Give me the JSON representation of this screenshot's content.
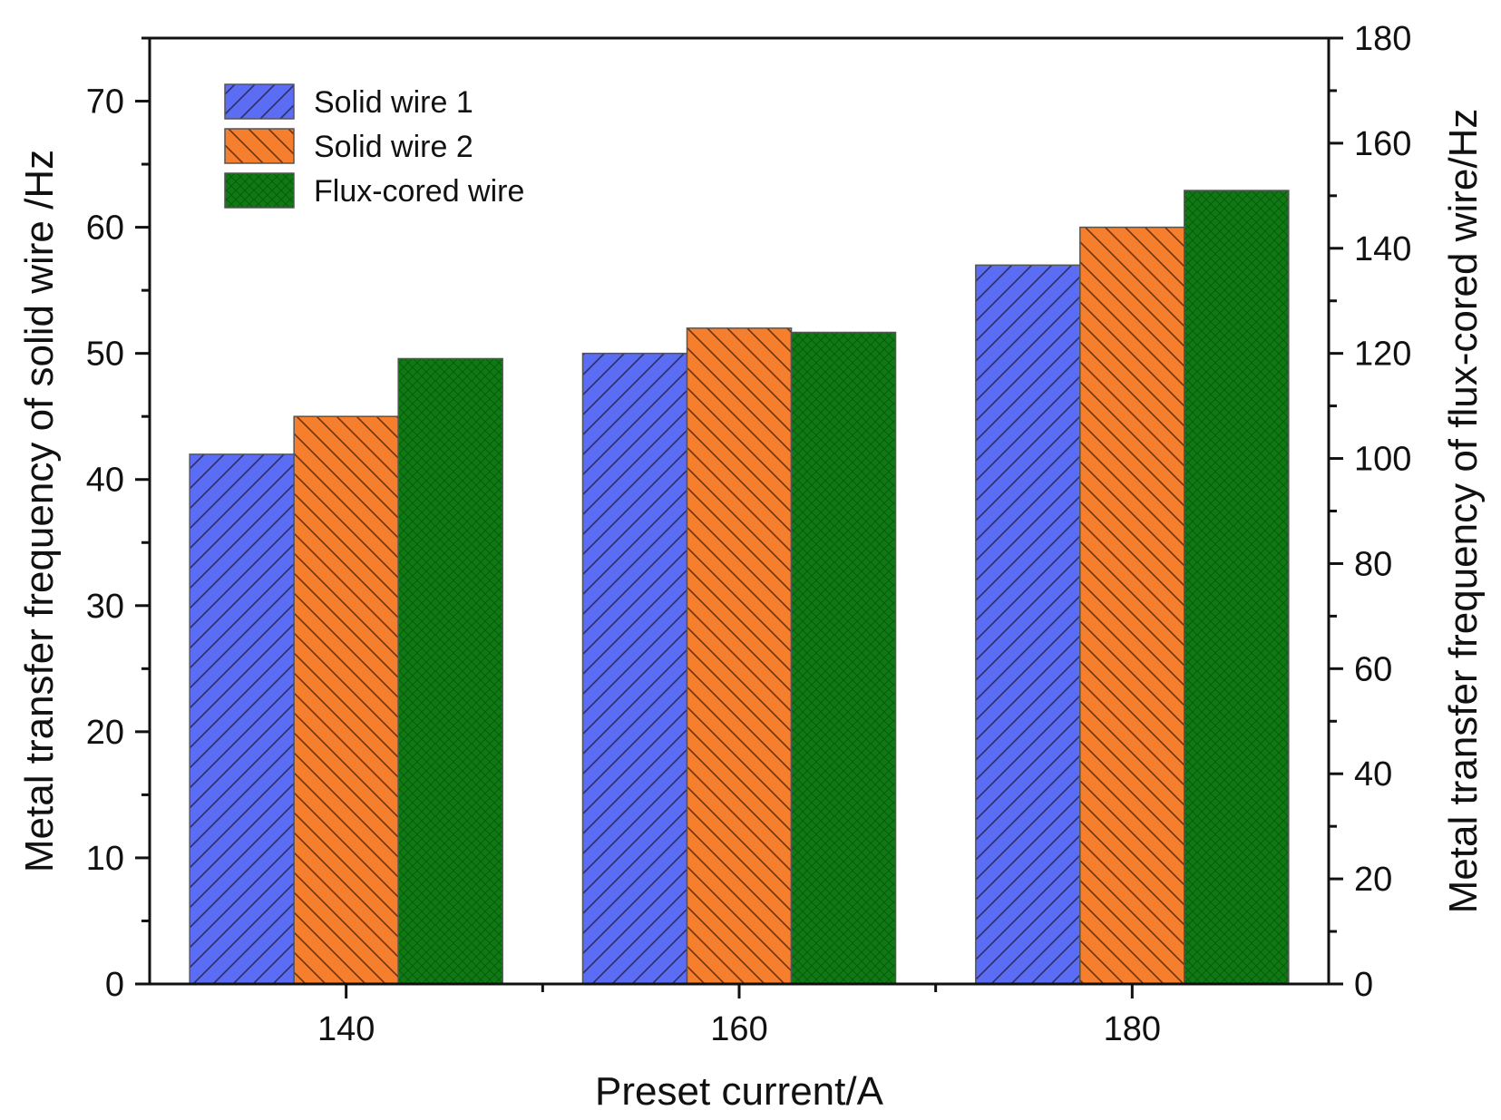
{
  "chart_data": {
    "type": "bar",
    "title": "",
    "xlabel": "Preset current/A",
    "ylabel_left": "Metal transfer frequency of solid wire /Hz",
    "ylabel_right": "Metal transfer frequency of flux-cored wire/Hz",
    "categories": [
      "140",
      "160",
      "180"
    ],
    "ylim_left": [
      0,
      75
    ],
    "ylim_right": [
      0,
      180
    ],
    "yticks_left": [
      0,
      10,
      20,
      30,
      40,
      50,
      60,
      70
    ],
    "yticks_right": [
      0,
      20,
      40,
      60,
      80,
      100,
      120,
      140,
      160,
      180
    ],
    "grid": false,
    "legend_position": "top-left",
    "series": [
      {
        "name": "Solid wire 1",
        "axis": "left",
        "values": [
          42,
          50,
          57
        ],
        "color": "#5b6cf5",
        "hatch": "forward"
      },
      {
        "name": "Solid wire 2",
        "axis": "left",
        "values": [
          45,
          52,
          60
        ],
        "color": "#f57f2d",
        "hatch": "back"
      },
      {
        "name": "Flux-cored wire",
        "axis": "right",
        "values": [
          119,
          124,
          151
        ],
        "color": "#0f7a14",
        "hatch": "cross"
      }
    ]
  }
}
